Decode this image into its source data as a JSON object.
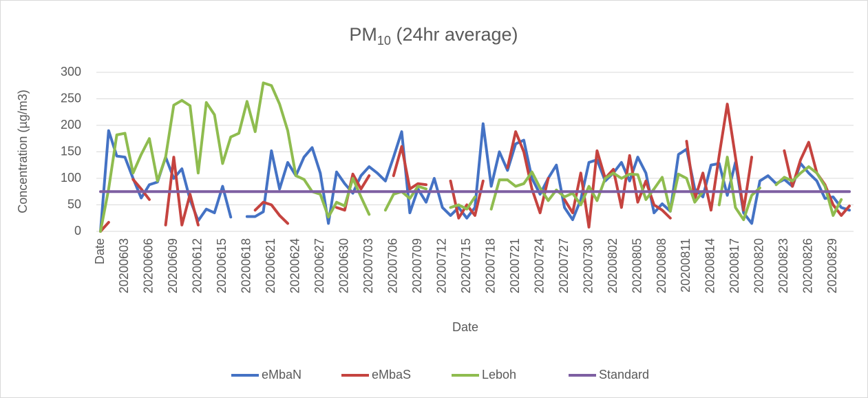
{
  "chart_data": {
    "type": "line",
    "title": {
      "main": "PM",
      "sub": "10",
      "rest": " (24hr average)"
    },
    "x_label": "Date",
    "y_label": "Concentration (µg/m3)",
    "categories": [
      "Date",
      null,
      null,
      "20200603",
      null,
      null,
      "20200606",
      null,
      null,
      "20200609",
      null,
      null,
      "20200612",
      null,
      null,
      "20200615",
      null,
      null,
      "20200618",
      null,
      null,
      "20200621",
      null,
      null,
      "20200624",
      null,
      null,
      "20200627",
      null,
      null,
      "20200630",
      null,
      null,
      "20200703",
      null,
      null,
      "20200706",
      null,
      null,
      "20200709",
      null,
      null,
      "20200712",
      null,
      null,
      "20200715",
      null,
      null,
      "20200718",
      null,
      null,
      "20200721",
      null,
      null,
      "20200724",
      null,
      null,
      "20200727",
      null,
      null,
      "20200730",
      null,
      null,
      "20200802",
      null,
      null,
      "20200805",
      null,
      null,
      "20200808",
      null,
      null,
      "20200811",
      null,
      null,
      "20200814",
      null,
      null,
      "20200817",
      null,
      null,
      "20200820",
      null,
      null,
      "20200823",
      null,
      null,
      "20200826",
      null,
      null,
      "20200829",
      null,
      null
    ],
    "series": [
      {
        "name": "eMbaN",
        "color": "#4472c4",
        "values": [
          0,
          190,
          142,
          140,
          100,
          63,
          88,
          93,
          140,
          100,
          118,
          60,
          20,
          42,
          35,
          85,
          27,
          null,
          28,
          28,
          37,
          152,
          80,
          130,
          105,
          140,
          158,
          110,
          15,
          112,
          90,
          72,
          105,
          122,
          110,
          95,
          140,
          188,
          35,
          80,
          55,
          100,
          45,
          30,
          45,
          25,
          45,
          203,
          85,
          150,
          115,
          165,
          172,
          100,
          70,
          100,
          125,
          45,
          22,
          60,
          130,
          135,
          95,
          110,
          130,
          95,
          140,
          110,
          35,
          52,
          38,
          145,
          155,
          80,
          65,
          125,
          128,
          68,
          130,
          35,
          15,
          95,
          105,
          90,
          98,
          85,
          128,
          110,
          95,
          62,
          65,
          45,
          40
        ]
      },
      {
        "name": "eMbaS",
        "color": "#c5433f",
        "values": [
          0,
          17,
          null,
          null,
          98,
          80,
          60,
          null,
          12,
          140,
          12,
          70,
          12,
          null,
          null,
          null,
          null,
          null,
          null,
          40,
          55,
          50,
          30,
          15,
          null,
          null,
          null,
          null,
          null,
          45,
          40,
          108,
          80,
          105,
          null,
          null,
          105,
          160,
          80,
          90,
          88,
          null,
          null,
          95,
          25,
          50,
          30,
          95,
          null,
          null,
          120,
          188,
          150,
          80,
          35,
          100,
          null,
          60,
          35,
          110,
          8,
          152,
          100,
          117,
          45,
          143,
          55,
          95,
          50,
          40,
          25,
          null,
          170,
          60,
          110,
          40,
          143,
          240,
          140,
          40,
          140,
          null,
          null,
          null,
          152,
          85,
          135,
          168,
          110,
          88,
          50,
          30,
          48
        ]
      },
      {
        "name": "Leboh",
        "color": "#8fbc4f",
        "values": [
          0,
          80,
          182,
          185,
          110,
          145,
          175,
          95,
          140,
          238,
          247,
          237,
          110,
          243,
          220,
          128,
          178,
          185,
          245,
          188,
          280,
          275,
          240,
          190,
          105,
          98,
          75,
          70,
          27,
          55,
          48,
          100,
          65,
          32,
          null,
          40,
          70,
          75,
          62,
          85,
          80,
          null,
          null,
          45,
          50,
          42,
          65,
          null,
          42,
          97,
          97,
          85,
          90,
          112,
          82,
          58,
          78,
          65,
          72,
          50,
          85,
          58,
          100,
          110,
          100,
          108,
          107,
          60,
          80,
          102,
          38,
          108,
          100,
          55,
          75,
          null,
          50,
          140,
          45,
          22,
          68,
          82,
          null,
          88,
          102,
          95,
          110,
          122,
          110,
          85,
          30,
          60,
          null
        ]
      },
      {
        "name": "Standard",
        "color": "#7e5fa2",
        "values": [
          75,
          75,
          75,
          75,
          75,
          75,
          75,
          75,
          75,
          75,
          75,
          75,
          75,
          75,
          75,
          75,
          75,
          75,
          75,
          75,
          75,
          75,
          75,
          75,
          75,
          75,
          75,
          75,
          75,
          75,
          75,
          75,
          75,
          75,
          75,
          75,
          75,
          75,
          75,
          75,
          75,
          75,
          75,
          75,
          75,
          75,
          75,
          75,
          75,
          75,
          75,
          75,
          75,
          75,
          75,
          75,
          75,
          75,
          75,
          75,
          75,
          75,
          75,
          75,
          75,
          75,
          75,
          75,
          75,
          75,
          75,
          75,
          75,
          75,
          75,
          75,
          75,
          75,
          75,
          75,
          75,
          75,
          75,
          75,
          75,
          75,
          75,
          75,
          75,
          75,
          75,
          75,
          75
        ]
      }
    ],
    "ylim": [
      0,
      300
    ],
    "yticks": [
      0,
      50,
      100,
      150,
      200,
      250,
      300
    ],
    "grid": true,
    "legend": "bottom"
  }
}
